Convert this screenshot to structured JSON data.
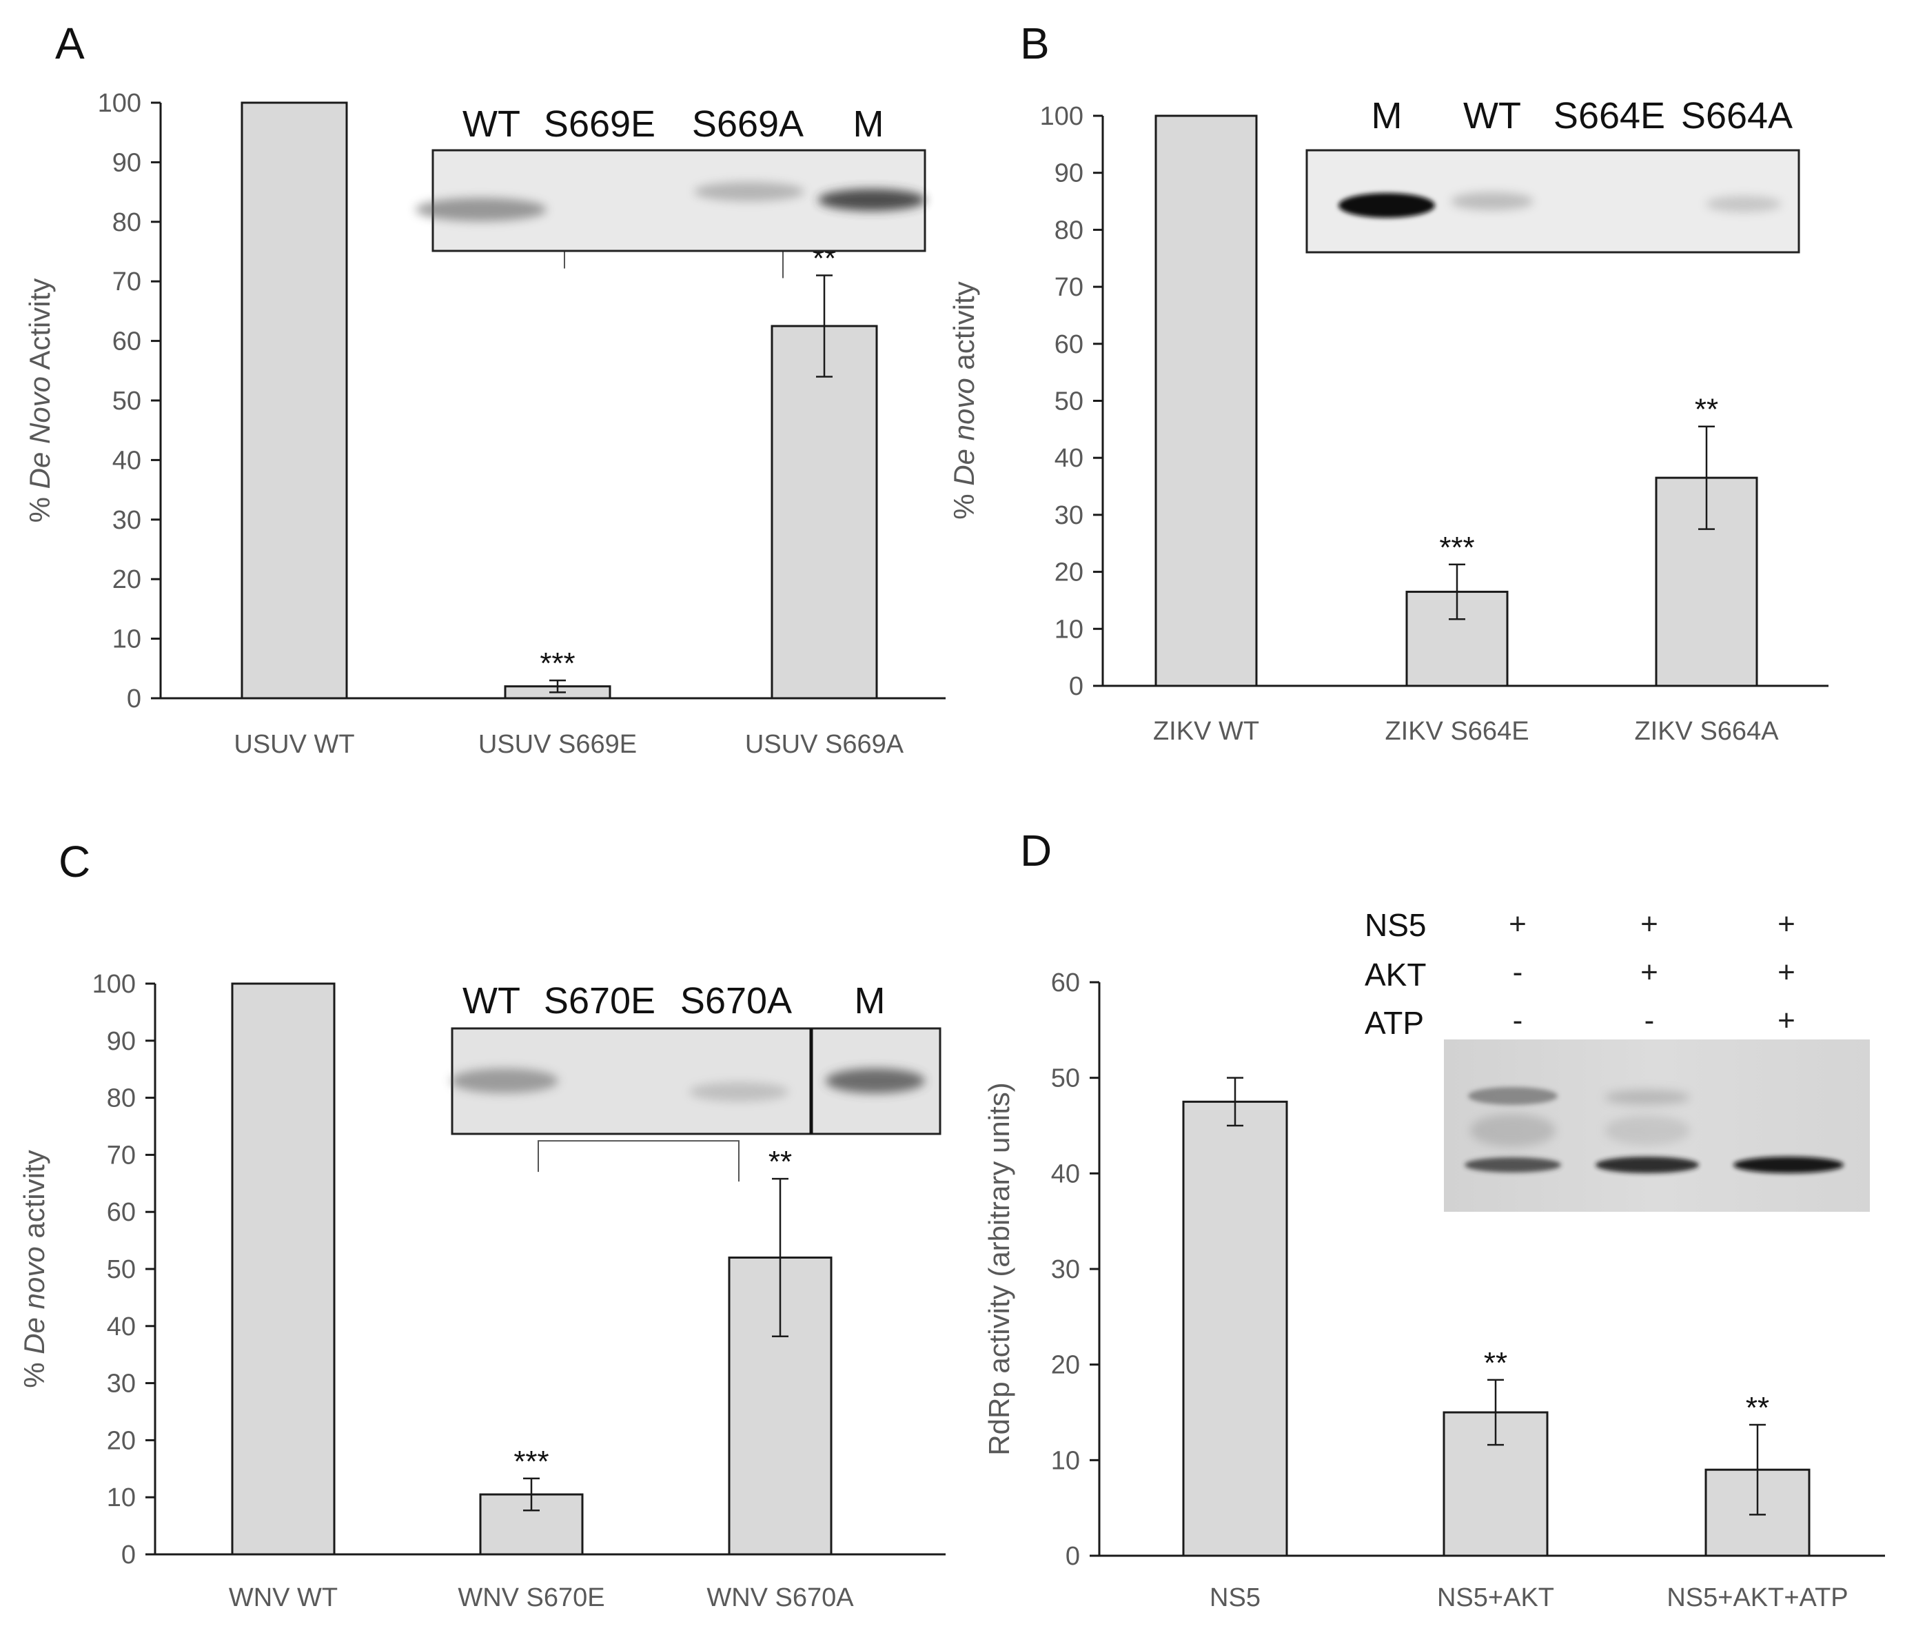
{
  "chart_data": [
    {
      "panel": "A",
      "type": "bar",
      "ylabel_parts": [
        {
          "text": "% ",
          "italic": false
        },
        {
          "text": "De Novo",
          "italic": true
        },
        {
          "text": " Activity",
          "italic": false
        }
      ],
      "ylim": [
        0,
        100
      ],
      "yticks": [
        "0",
        "10",
        "20",
        "30",
        "40",
        "50",
        "60",
        "70",
        "80",
        "90",
        "100"
      ],
      "categories": [
        "USUV WT",
        "USUV S669E",
        "USUV S669A"
      ],
      "values": [
        100,
        2,
        62.5
      ],
      "errors": [
        null,
        1,
        8.5
      ],
      "significance": [
        "",
        "***",
        "**"
      ],
      "bracket": {
        "from": 1,
        "to": 2,
        "label": "**"
      },
      "grid": false,
      "gel": {
        "lanes": [
          "WT",
          "S669E",
          "S669A",
          "M"
        ],
        "band_intensity": [
          0.55,
          0,
          0.35,
          0.85
        ]
      }
    },
    {
      "panel": "B",
      "type": "bar",
      "ylabel_parts": [
        {
          "text": "% ",
          "italic": false
        },
        {
          "text": "De novo",
          "italic": true
        },
        {
          "text": " activity",
          "italic": false
        }
      ],
      "ylim": [
        0,
        100
      ],
      "yticks": [
        "0",
        "10",
        "20",
        "30",
        "40",
        "50",
        "60",
        "70",
        "80",
        "90",
        "100"
      ],
      "categories": [
        "ZIKV WT",
        "ZIKV S664E",
        "ZIKV S664A"
      ],
      "values": [
        100,
        16.5,
        36.5
      ],
      "errors": [
        null,
        4.8,
        9
      ],
      "significance": [
        "",
        "***",
        "**"
      ],
      "grid": false,
      "gel": {
        "lanes": [
          "M",
          "WT",
          "S664E",
          "S664A"
        ],
        "band_intensity": [
          1.0,
          0.3,
          0.05,
          0.2
        ]
      }
    },
    {
      "panel": "C",
      "type": "bar",
      "ylabel_parts": [
        {
          "text": "% ",
          "italic": false
        },
        {
          "text": "De novo",
          "italic": true
        },
        {
          "text": " activity",
          "italic": false
        }
      ],
      "ylim": [
        0,
        100
      ],
      "yticks": [
        "0",
        "10",
        "20",
        "30",
        "40",
        "50",
        "60",
        "70",
        "80",
        "90",
        "100"
      ],
      "categories": [
        "WNV WT",
        "WNV S670E",
        "WNV S670A"
      ],
      "values": [
        100,
        10.5,
        52
      ],
      "errors": [
        null,
        2.8,
        13.8
      ],
      "significance": [
        "",
        "***",
        "**"
      ],
      "bracket": {
        "from": 1,
        "to": 2,
        "label": "*"
      },
      "grid": false,
      "gel": {
        "lanes": [
          "WT",
          "S670E",
          "S670A",
          "M"
        ],
        "band_intensity": [
          0.5,
          0,
          0.25,
          0.75
        ]
      }
    },
    {
      "panel": "D",
      "type": "bar",
      "ylabel_parts": [
        {
          "text": "RdRp activity (arbitrary units)",
          "italic": false
        }
      ],
      "ylim": [
        0,
        60
      ],
      "yticks": [
        "0",
        "10",
        "20",
        "30",
        "40",
        "50",
        "60"
      ],
      "categories": [
        "NS5",
        "NS5+AKT",
        "NS5+AKT+ATP"
      ],
      "values": [
        47.5,
        15,
        9
      ],
      "errors": [
        2.5,
        3.4,
        4.7
      ],
      "significance": [
        "",
        "**",
        "**"
      ],
      "grid": false,
      "gel": {
        "rows": [
          {
            "label": "NS5",
            "signs": [
              "+",
              "+",
              "+"
            ]
          },
          {
            "label": "AKT",
            "signs": [
              "-",
              "+",
              "+"
            ]
          },
          {
            "label": "ATP",
            "signs": [
              "-",
              "-",
              "+"
            ]
          }
        ]
      }
    }
  ],
  "colors": {
    "bar_fill": "#d9d9d9",
    "bar_stroke": "#1a1a1a",
    "axis": "#1a1a1a",
    "tick_text": "#595959"
  }
}
